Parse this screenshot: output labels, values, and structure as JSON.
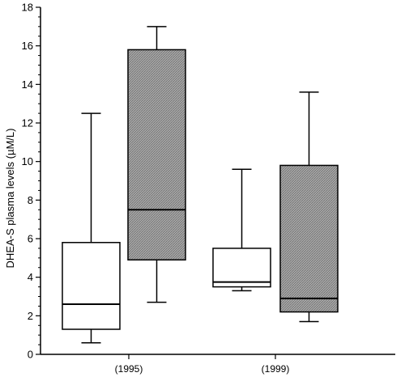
{
  "chart_data": {
    "type": "boxplot",
    "ylabel": "DHEA-S plasma levels (µM/L)",
    "ylim": [
      0,
      18
    ],
    "y_ticks": [
      "0",
      "2",
      "4",
      "6",
      "8",
      "10",
      "12",
      "14",
      "16",
      "18"
    ],
    "y_minor_step": 0.5,
    "categories": [
      "(1995)",
      "(1999)"
    ],
    "groups": [
      {
        "category": "(1995)",
        "boxes": [
          {
            "fill": "white",
            "whisker_low": 0.6,
            "q1": 1.3,
            "median": 2.6,
            "q3": 5.8,
            "whisker_high": 12.5
          },
          {
            "fill": "hatched",
            "whisker_low": 2.7,
            "q1": 4.9,
            "median": 7.5,
            "q3": 15.8,
            "whisker_high": 17.0
          }
        ]
      },
      {
        "category": "(1999)",
        "boxes": [
          {
            "fill": "white",
            "whisker_low": 3.3,
            "q1": 3.5,
            "median": 3.75,
            "q3": 5.5,
            "whisker_high": 9.6
          },
          {
            "fill": "hatched",
            "whisker_low": 1.7,
            "q1": 2.2,
            "median": 2.9,
            "q3": 9.8,
            "whisker_high": 13.6
          }
        ]
      }
    ],
    "colors": {
      "white_box": "#ffffff",
      "hatched_box": "#a9a9a9",
      "stroke": "#000000"
    },
    "grid": false,
    "legend": "none"
  }
}
